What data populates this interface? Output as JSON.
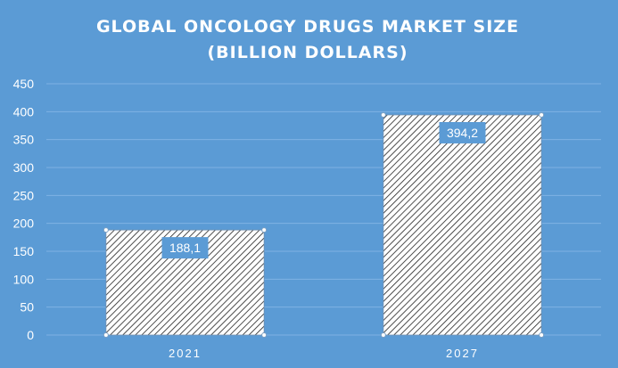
{
  "colors": {
    "background": "#5b9bd5",
    "gridline": "#7fb2e4",
    "bar_fill": "#ffffff",
    "bar_hatch": "#222222",
    "label_box": "#5b9bd5",
    "text": "#ffffff"
  },
  "chart_data": {
    "type": "bar",
    "title_line1": "GLOBAL ONCOLOGY DRUGS MARKET SIZE",
    "title_line2": "(BILLION DOLLARS)",
    "categories": [
      "2021",
      "2027"
    ],
    "values": [
      188.1,
      394.2
    ],
    "data_labels": [
      "188,1",
      "394,2"
    ],
    "ylim": [
      0,
      450
    ],
    "yticks": [
      0,
      50,
      100,
      150,
      200,
      250,
      300,
      350,
      400,
      450
    ],
    "grid": true,
    "legend": "none",
    "bar_pattern": "diagonal-hatch"
  }
}
